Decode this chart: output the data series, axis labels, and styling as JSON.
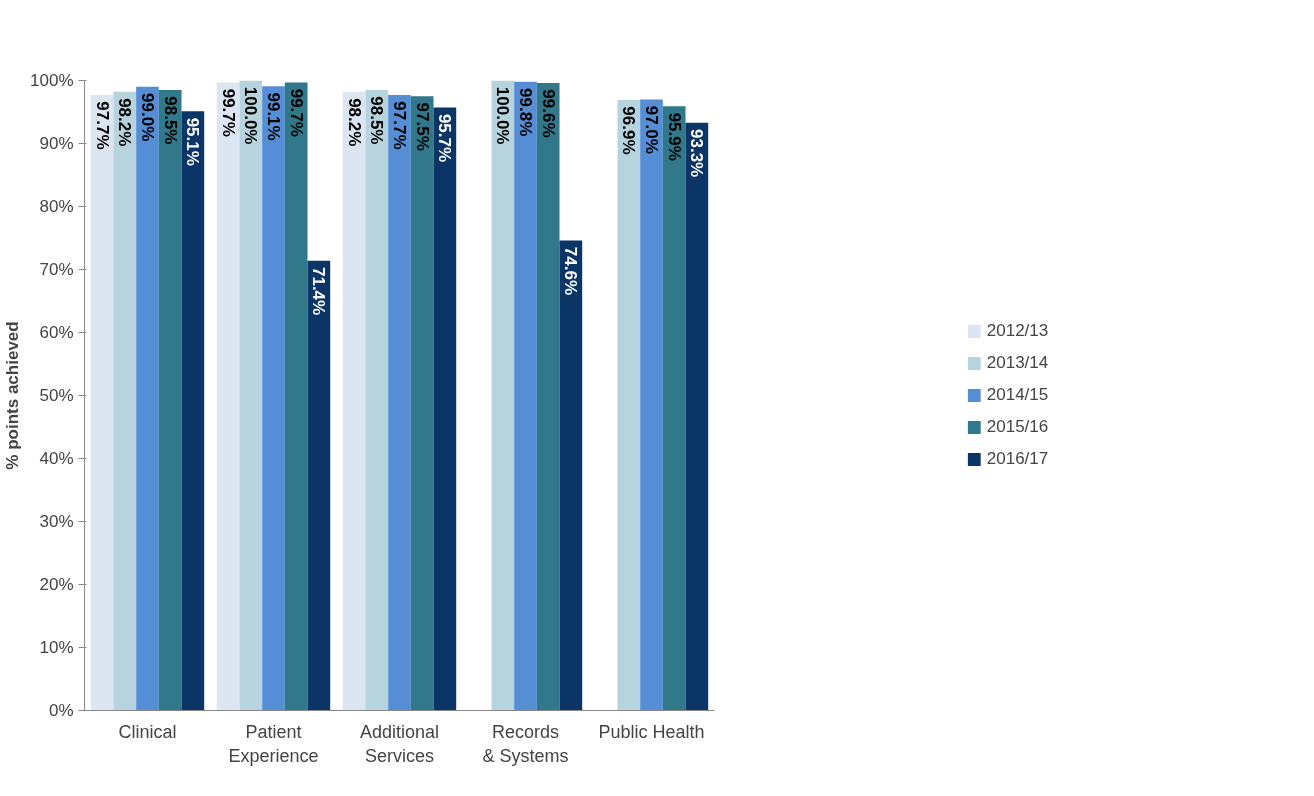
{
  "chart_data": {
    "type": "bar",
    "ylabel": "% points achieved",
    "categories": [
      "Clinical",
      "Patient Experience",
      "Additional Services",
      "Records & Systems",
      "Public Health"
    ],
    "series": [
      {
        "name": "2012/13",
        "color": "#dce6f2",
        "values": [
          97.7,
          99.7,
          98.2,
          null,
          null
        ],
        "value_labels": [
          "97.7%",
          "99.7%",
          "98.2%",
          null,
          null
        ]
      },
      {
        "name": "2013/14",
        "color": "#b7d4de",
        "values": [
          98.2,
          100.0,
          98.5,
          100.0,
          96.9
        ],
        "value_labels": [
          "98.2%",
          "100.0%",
          "98.5%",
          "100.0%",
          "96.9%"
        ]
      },
      {
        "name": "2014/15",
        "color": "#558ed5",
        "values": [
          99.0,
          99.1,
          97.7,
          99.8,
          97.0
        ],
        "value_labels": [
          "99.0%",
          "99.1%",
          "97.7%",
          "99.8%",
          "97.0%"
        ]
      },
      {
        "name": "2015/16",
        "color": "#31788a",
        "values": [
          98.5,
          99.7,
          97.5,
          99.6,
          95.9
        ],
        "value_labels": [
          "98.5%",
          "99.7%",
          "97.5%",
          "99.6%",
          "95.9%"
        ]
      },
      {
        "name": "2016/17",
        "color": "#0b3566",
        "values": [
          95.1,
          71.4,
          95.7,
          74.6,
          93.3
        ],
        "value_labels": [
          "95.1%",
          "71.4%",
          "95.7%",
          "74.6%",
          "93.3%"
        ]
      }
    ],
    "ylim": [
      0,
      100
    ],
    "yticks": [
      {
        "value": 0,
        "label": "0%"
      },
      {
        "value": 10,
        "label": "10%"
      },
      {
        "value": 20,
        "label": "20%"
      },
      {
        "value": 30,
        "label": "30%"
      },
      {
        "value": 40,
        "label": "40%"
      },
      {
        "value": 50,
        "label": "50%"
      },
      {
        "value": 60,
        "label": "60%"
      },
      {
        "value": 70,
        "label": "70%"
      },
      {
        "value": 80,
        "label": "80%"
      },
      {
        "value": 90,
        "label": "90%"
      },
      {
        "value": 100,
        "label": "100%"
      }
    ],
    "grid": false,
    "legend": "right"
  }
}
